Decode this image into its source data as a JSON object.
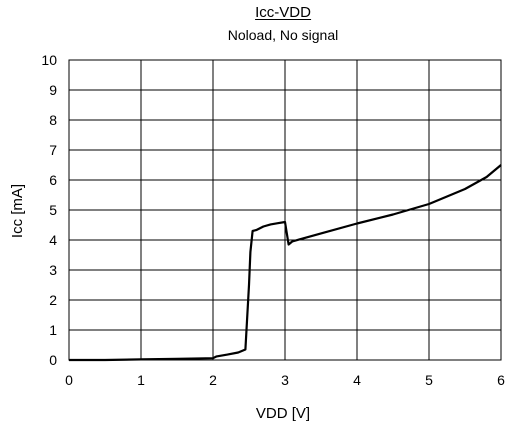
{
  "chart_data": {
    "type": "line",
    "title": "Icc-VDD",
    "subtitle": "Noload, No signal",
    "xlabel": "VDD [V]",
    "ylabel": "Icc [mA]",
    "xlim": [
      0,
      6
    ],
    "ylim": [
      0,
      10
    ],
    "xticks": [
      "0",
      "1",
      "2",
      "3",
      "4",
      "5",
      "6"
    ],
    "yticks": [
      "0",
      "1",
      "2",
      "3",
      "4",
      "5",
      "6",
      "7",
      "8",
      "9",
      "10"
    ],
    "grid": true,
    "legend": "none",
    "series": [
      {
        "color": "#000000",
        "x": [
          0,
          0.5,
          1.0,
          1.5,
          2.0,
          2.05,
          2.2,
          2.35,
          2.45,
          2.5,
          2.52,
          2.55,
          2.6,
          2.7,
          2.8,
          2.9,
          3.0,
          3.05,
          3.1,
          3.2,
          3.5,
          4.0,
          4.5,
          5.0,
          5.5,
          5.8,
          6.0
        ],
        "y": [
          0.0,
          0.0,
          0.02,
          0.04,
          0.06,
          0.12,
          0.18,
          0.25,
          0.35,
          2.5,
          3.6,
          4.3,
          4.33,
          4.45,
          4.52,
          4.56,
          4.6,
          3.85,
          3.95,
          4.02,
          4.22,
          4.55,
          4.85,
          5.2,
          5.7,
          6.1,
          6.5
        ]
      }
    ]
  }
}
